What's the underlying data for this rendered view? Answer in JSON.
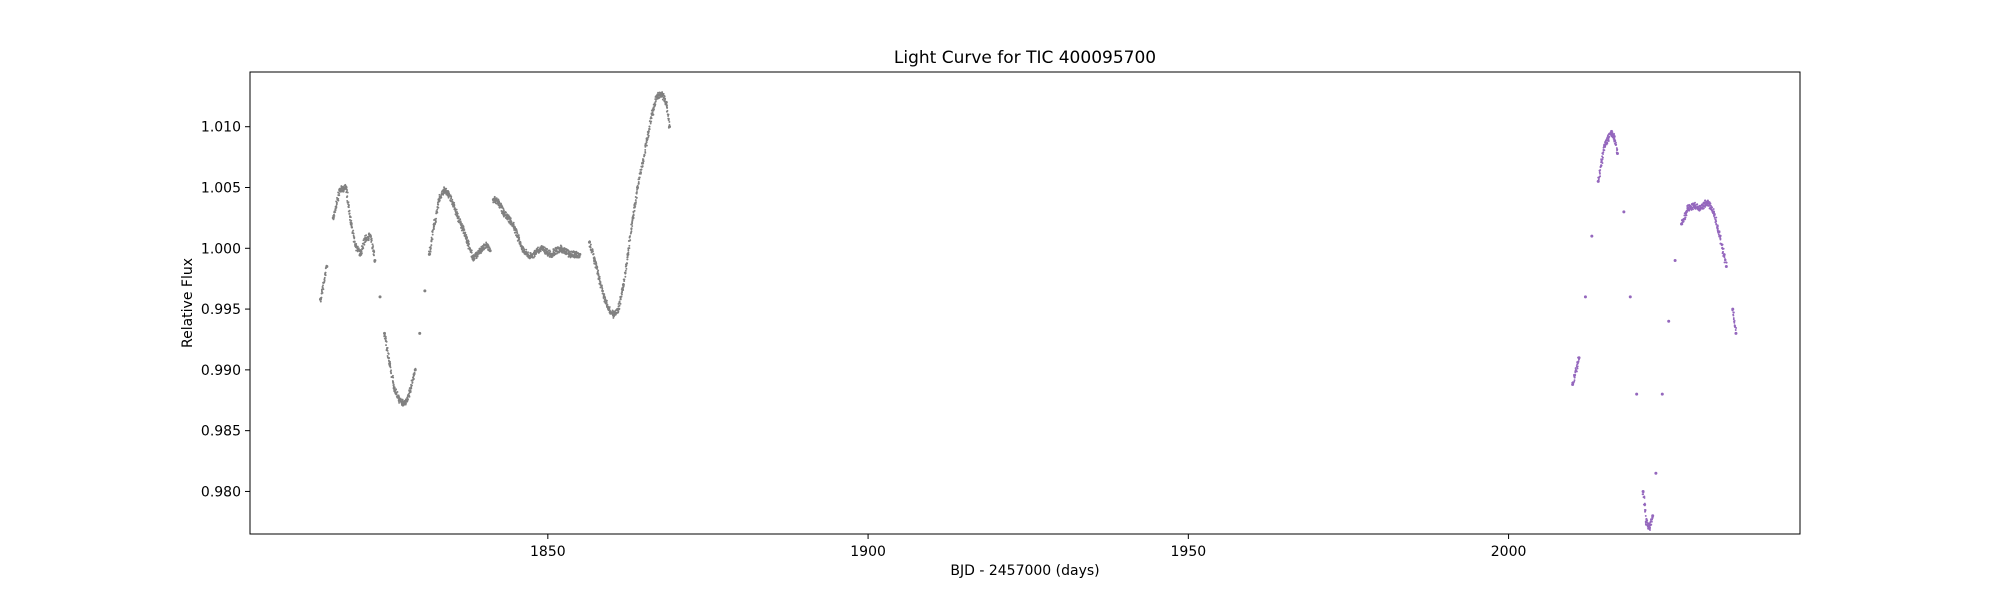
{
  "chart_data": {
    "type": "scatter",
    "title": "Light Curve for TIC 400095700",
    "xlabel": "BJD - 2457000 (days)",
    "ylabel": "Relative Flux",
    "xlim": [
      1803.5,
      2045.5
    ],
    "ylim": [
      0.9765,
      1.0145
    ],
    "xticks": [
      1850,
      1900,
      1950,
      2000
    ],
    "xtick_labels": [
      "1850",
      "1900",
      "1950",
      "2000"
    ],
    "yticks": [
      0.98,
      0.985,
      0.99,
      0.995,
      1.0,
      1.005,
      1.01
    ],
    "ytick_labels": [
      "0.980",
      "0.985",
      "0.990",
      "0.995",
      "1.000",
      "1.005",
      "1.010"
    ],
    "grid": false,
    "legend": "none",
    "series": [
      {
        "color": "#808080",
        "x": [
          1814.5,
          1815.5,
          1816.5,
          1817.5,
          1818.5,
          1819.3,
          1820.0,
          1820.8,
          1821.5,
          1822.3,
          1823.0,
          1823.8,
          1824.5,
          1825.3,
          1826.0,
          1826.8,
          1827.5,
          1828.0,
          1828.5,
          1829.3,
          1830.0,
          1830.8,
          1831.5,
          1832.3,
          1833.0,
          1833.8,
          1834.5,
          1835.3,
          1836.0,
          1836.8,
          1837.5,
          1838.3,
          1839.0,
          1839.8,
          1840.5,
          1841.0,
          1841.5,
          1842.3,
          1843.0,
          1843.8,
          1844.5,
          1845.3,
          1846.0,
          1846.8,
          1847.5,
          1848.3,
          1849.0,
          1849.8,
          1850.5,
          1851.3,
          1852.0,
          1852.8,
          1853.5,
          1854.3,
          1855.0,
          1856.5,
          1857.3,
          1858.0,
          1858.8,
          1859.5,
          1860.3,
          1861.0,
          1861.8,
          1862.5,
          1863.3,
          1864.0,
          1864.8,
          1865.5,
          1866.3,
          1867.0,
          1867.8,
          1868.5,
          1869.0
        ],
        "y": [
          0.9958,
          0.9985,
          1.0025,
          1.0048,
          1.005,
          1.002,
          1.0002,
          0.9995,
          1.0008,
          1.001,
          0.999,
          0.996,
          0.993,
          0.9905,
          0.9885,
          0.9875,
          0.9872,
          0.9875,
          0.9882,
          0.99,
          0.993,
          0.9965,
          0.9995,
          1.002,
          1.004,
          1.0048,
          1.0045,
          1.0035,
          1.0025,
          1.0015,
          1.0005,
          0.9992,
          0.9995,
          1.0,
          1.0003,
          0.9998,
          1.004,
          1.0038,
          1.003,
          1.0025,
          1.002,
          1.001,
          1.0,
          0.9995,
          0.9993,
          0.9998,
          1.0,
          0.9997,
          0.9995,
          0.9998,
          1.0,
          0.9997,
          0.9995,
          0.9995,
          0.9995,
          1.0005,
          0.999,
          0.9975,
          0.996,
          0.995,
          0.9945,
          0.995,
          0.997,
          0.9995,
          1.0025,
          1.005,
          1.007,
          1.009,
          1.011,
          1.0125,
          1.0127,
          1.012,
          1.01
        ]
      },
      {
        "color": "#9467bd",
        "x": [
          2010.0,
          2011.0,
          2012.0,
          2013.0,
          2014.0,
          2015.0,
          2016.0,
          2016.5,
          2017.0,
          2018.0,
          2019.0,
          2020.0,
          2021.0,
          2021.5,
          2022.0,
          2022.5,
          2023.0,
          2024.0,
          2025.0,
          2026.0,
          2027.0,
          2028.0,
          2029.0,
          2030.0,
          2031.0,
          2032.0,
          2033.0,
          2034.0,
          2035.0,
          2035.5
        ],
        "y": [
          0.9888,
          0.991,
          0.996,
          1.001,
          1.0055,
          1.0085,
          1.0095,
          1.0092,
          1.0078,
          1.003,
          0.996,
          0.988,
          0.98,
          0.9775,
          0.977,
          0.978,
          0.9815,
          0.988,
          0.994,
          0.999,
          1.002,
          1.0033,
          1.0035,
          1.0033,
          1.0038,
          1.003,
          1.001,
          0.9985,
          0.995,
          0.993
        ]
      }
    ]
  }
}
